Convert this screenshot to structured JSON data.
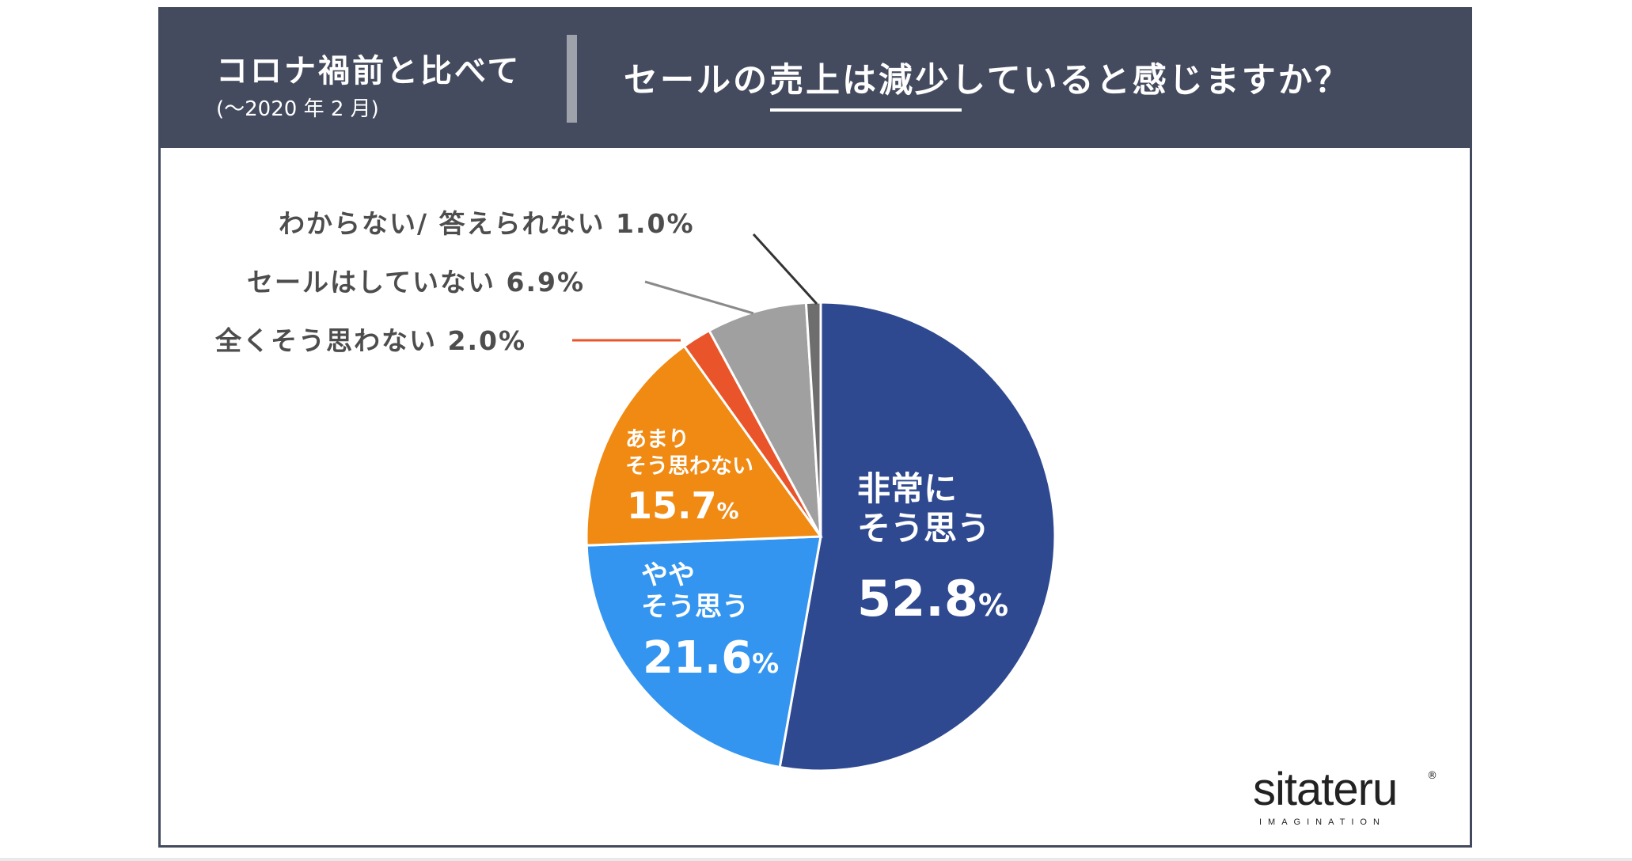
{
  "header": {
    "lead": "コロナ禍前と比べて",
    "period": "(〜2020 年 2 月)",
    "question": "セールの売上は減少していると感じますか？"
  },
  "chart_data": {
    "type": "pie",
    "title": "セールの売上は減少していると感じますか？",
    "slices": [
      {
        "label": "非常にそう思う",
        "value": 52.8,
        "display": "52.8%",
        "color": "#2f4990"
      },
      {
        "label": "ややそう思う",
        "value": 21.6,
        "display": "21.6%",
        "color": "#3395ef"
      },
      {
        "label": "あまりそう思わない",
        "value": 15.7,
        "display": "15.7%",
        "color": "#f08a13"
      },
      {
        "label": "全くそう思わない",
        "value": 2.0,
        "display": "2.0%",
        "color": "#e9542a"
      },
      {
        "label": "セールはしていない",
        "value": 6.9,
        "display": "6.9%",
        "color": "#a0a0a0"
      },
      {
        "label": "わからない/ 答えられない",
        "value": 1.0,
        "display": "1.0%",
        "color": "#6e6e6e"
      }
    ]
  },
  "labels": {
    "s0_line1": "非常に",
    "s0_line2": "そう思う",
    "s0_value": "52.8",
    "s1_line1": "やや",
    "s1_line2": "そう思う",
    "s1_value": "21.6",
    "s2_line1": "あまり",
    "s2_line2": "そう思わない",
    "s2_value": "15.7",
    "s3_text": "全くそう思わない 2.0%",
    "s4_text": "セールはしていない 6.9%",
    "s5_text": "わからない/ 答えられない 1.0%",
    "percent_sign": "%"
  },
  "logo": {
    "word": "sitateru",
    "registered": "®",
    "sub": "IMAGINATION"
  }
}
